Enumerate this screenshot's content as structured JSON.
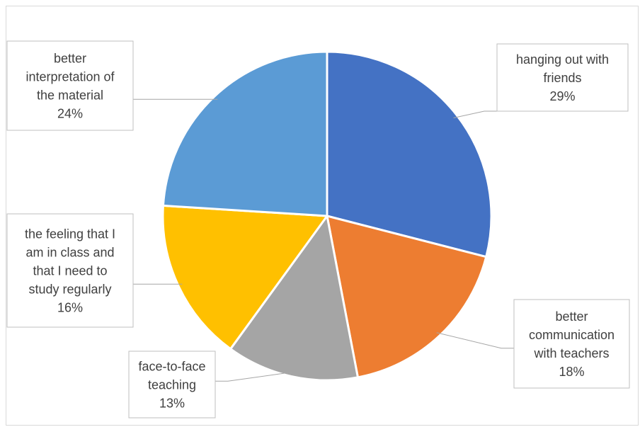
{
  "chart_data": {
    "type": "pie",
    "title": "",
    "slices": [
      {
        "label_lines": [
          "hanging out with",
          "friends"
        ],
        "value_label": "29%",
        "value": 29,
        "color": "#4472C4"
      },
      {
        "label_lines": [
          "better",
          "communication",
          "with teachers"
        ],
        "value_label": "18%",
        "value": 18,
        "color": "#ED7D31"
      },
      {
        "label_lines": [
          "face-to-face",
          "teaching"
        ],
        "value_label": "13%",
        "value": 13,
        "color": "#A5A5A5"
      },
      {
        "label_lines": [
          "the feeling that I",
          "am in class and",
          "that I need to",
          "study regularly"
        ],
        "value_label": "16%",
        "value": 16,
        "color": "#FFC000"
      },
      {
        "label_lines": [
          "better",
          "interpretation of",
          "the material"
        ],
        "value_label": "24%",
        "value": 24,
        "color": "#5B9BD5"
      }
    ]
  }
}
